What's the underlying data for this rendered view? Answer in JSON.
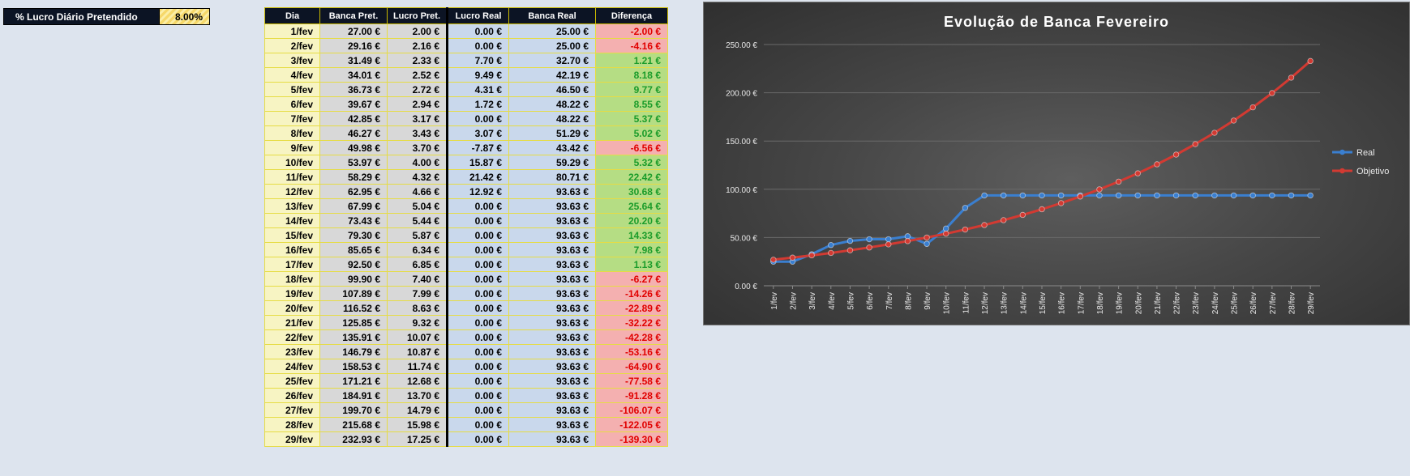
{
  "parameter": {
    "label": "% Lucro Diário Pretendido",
    "value": "8.00%"
  },
  "table": {
    "headers": [
      "Dia",
      "Banca Pret.",
      "Lucro Pret.",
      "Lucro Real",
      "Banca Real",
      "Diferença"
    ],
    "rows": [
      {
        "dia": "1/fev",
        "banca_pret": "27.00 €",
        "lucro_pret": "2.00 €",
        "lucro_real": "0.00 €",
        "banca_real": "25.00 €",
        "diferenca": "-2.00 €",
        "sign": "neg"
      },
      {
        "dia": "2/fev",
        "banca_pret": "29.16 €",
        "lucro_pret": "2.16 €",
        "lucro_real": "0.00 €",
        "banca_real": "25.00 €",
        "diferenca": "-4.16 €",
        "sign": "neg"
      },
      {
        "dia": "3/fev",
        "banca_pret": "31.49 €",
        "lucro_pret": "2.33 €",
        "lucro_real": "7.70 €",
        "banca_real": "32.70 €",
        "diferenca": "1.21 €",
        "sign": "pos"
      },
      {
        "dia": "4/fev",
        "banca_pret": "34.01 €",
        "lucro_pret": "2.52 €",
        "lucro_real": "9.49 €",
        "banca_real": "42.19 €",
        "diferenca": "8.18 €",
        "sign": "pos"
      },
      {
        "dia": "5/fev",
        "banca_pret": "36.73 €",
        "lucro_pret": "2.72 €",
        "lucro_real": "4.31 €",
        "banca_real": "46.50 €",
        "diferenca": "9.77 €",
        "sign": "pos"
      },
      {
        "dia": "6/fev",
        "banca_pret": "39.67 €",
        "lucro_pret": "2.94 €",
        "lucro_real": "1.72 €",
        "banca_real": "48.22 €",
        "diferenca": "8.55 €",
        "sign": "pos"
      },
      {
        "dia": "7/fev",
        "banca_pret": "42.85 €",
        "lucro_pret": "3.17 €",
        "lucro_real": "0.00 €",
        "banca_real": "48.22 €",
        "diferenca": "5.37 €",
        "sign": "pos"
      },
      {
        "dia": "8/fev",
        "banca_pret": "46.27 €",
        "lucro_pret": "3.43 €",
        "lucro_real": "3.07 €",
        "banca_real": "51.29 €",
        "diferenca": "5.02 €",
        "sign": "pos"
      },
      {
        "dia": "9/fev",
        "banca_pret": "49.98 €",
        "lucro_pret": "3.70 €",
        "lucro_real": "-7.87 €",
        "banca_real": "43.42 €",
        "diferenca": "-6.56 €",
        "sign": "neg"
      },
      {
        "dia": "10/fev",
        "banca_pret": "53.97 €",
        "lucro_pret": "4.00 €",
        "lucro_real": "15.87 €",
        "banca_real": "59.29 €",
        "diferenca": "5.32 €",
        "sign": "pos"
      },
      {
        "dia": "11/fev",
        "banca_pret": "58.29 €",
        "lucro_pret": "4.32 €",
        "lucro_real": "21.42 €",
        "banca_real": "80.71 €",
        "diferenca": "22.42 €",
        "sign": "pos"
      },
      {
        "dia": "12/fev",
        "banca_pret": "62.95 €",
        "lucro_pret": "4.66 €",
        "lucro_real": "12.92 €",
        "banca_real": "93.63 €",
        "diferenca": "30.68 €",
        "sign": "pos"
      },
      {
        "dia": "13/fev",
        "banca_pret": "67.99 €",
        "lucro_pret": "5.04 €",
        "lucro_real": "0.00 €",
        "banca_real": "93.63 €",
        "diferenca": "25.64 €",
        "sign": "pos"
      },
      {
        "dia": "14/fev",
        "banca_pret": "73.43 €",
        "lucro_pret": "5.44 €",
        "lucro_real": "0.00 €",
        "banca_real": "93.63 €",
        "diferenca": "20.20 €",
        "sign": "pos"
      },
      {
        "dia": "15/fev",
        "banca_pret": "79.30 €",
        "lucro_pret": "5.87 €",
        "lucro_real": "0.00 €",
        "banca_real": "93.63 €",
        "diferenca": "14.33 €",
        "sign": "pos"
      },
      {
        "dia": "16/fev",
        "banca_pret": "85.65 €",
        "lucro_pret": "6.34 €",
        "lucro_real": "0.00 €",
        "banca_real": "93.63 €",
        "diferenca": "7.98 €",
        "sign": "pos"
      },
      {
        "dia": "17/fev",
        "banca_pret": "92.50 €",
        "lucro_pret": "6.85 €",
        "lucro_real": "0.00 €",
        "banca_real": "93.63 €",
        "diferenca": "1.13 €",
        "sign": "pos"
      },
      {
        "dia": "18/fev",
        "banca_pret": "99.90 €",
        "lucro_pret": "7.40 €",
        "lucro_real": "0.00 €",
        "banca_real": "93.63 €",
        "diferenca": "-6.27 €",
        "sign": "neg"
      },
      {
        "dia": "19/fev",
        "banca_pret": "107.89 €",
        "lucro_pret": "7.99 €",
        "lucro_real": "0.00 €",
        "banca_real": "93.63 €",
        "diferenca": "-14.26 €",
        "sign": "neg"
      },
      {
        "dia": "20/fev",
        "banca_pret": "116.52 €",
        "lucro_pret": "8.63 €",
        "lucro_real": "0.00 €",
        "banca_real": "93.63 €",
        "diferenca": "-22.89 €",
        "sign": "neg"
      },
      {
        "dia": "21/fev",
        "banca_pret": "125.85 €",
        "lucro_pret": "9.32 €",
        "lucro_real": "0.00 €",
        "banca_real": "93.63 €",
        "diferenca": "-32.22 €",
        "sign": "neg"
      },
      {
        "dia": "22/fev",
        "banca_pret": "135.91 €",
        "lucro_pret": "10.07 €",
        "lucro_real": "0.00 €",
        "banca_real": "93.63 €",
        "diferenca": "-42.28 €",
        "sign": "neg"
      },
      {
        "dia": "23/fev",
        "banca_pret": "146.79 €",
        "lucro_pret": "10.87 €",
        "lucro_real": "0.00 €",
        "banca_real": "93.63 €",
        "diferenca": "-53.16 €",
        "sign": "neg"
      },
      {
        "dia": "24/fev",
        "banca_pret": "158.53 €",
        "lucro_pret": "11.74 €",
        "lucro_real": "0.00 €",
        "banca_real": "93.63 €",
        "diferenca": "-64.90 €",
        "sign": "neg"
      },
      {
        "dia": "25/fev",
        "banca_pret": "171.21 €",
        "lucro_pret": "12.68 €",
        "lucro_real": "0.00 €",
        "banca_real": "93.63 €",
        "diferenca": "-77.58 €",
        "sign": "neg"
      },
      {
        "dia": "26/fev",
        "banca_pret": "184.91 €",
        "lucro_pret": "13.70 €",
        "lucro_real": "0.00 €",
        "banca_real": "93.63 €",
        "diferenca": "-91.28 €",
        "sign": "neg"
      },
      {
        "dia": "27/fev",
        "banca_pret": "199.70 €",
        "lucro_pret": "14.79 €",
        "lucro_real": "0.00 €",
        "banca_real": "93.63 €",
        "diferenca": "-106.07 €",
        "sign": "neg"
      },
      {
        "dia": "28/fev",
        "banca_pret": "215.68 €",
        "lucro_pret": "15.98 €",
        "lucro_real": "0.00 €",
        "banca_real": "93.63 €",
        "diferenca": "-122.05 €",
        "sign": "neg"
      },
      {
        "dia": "29/fev",
        "banca_pret": "232.93 €",
        "lucro_pret": "17.25 €",
        "lucro_real": "0.00 €",
        "banca_real": "93.63 €",
        "diferenca": "-139.30 €",
        "sign": "neg"
      }
    ]
  },
  "chart_data": {
    "type": "line",
    "title": "Evolução de Banca Fevereiro",
    "categories": [
      "1/fev",
      "2/fev",
      "3/fev",
      "4/fev",
      "5/fev",
      "6/fev",
      "7/fev",
      "8/fev",
      "9/fev",
      "10/fev",
      "11/fev",
      "12/fev",
      "13/fev",
      "14/fev",
      "15/fev",
      "16/fev",
      "17/fev",
      "18/fev",
      "19/fev",
      "20/fev",
      "21/fev",
      "22/fev",
      "23/fev",
      "24/fev",
      "25/fev",
      "26/fev",
      "27/fev",
      "28/fev",
      "29/fev"
    ],
    "series": [
      {
        "name": "Real",
        "color": "#3a7fd0",
        "values": [
          25.0,
          25.0,
          32.7,
          42.19,
          46.5,
          48.22,
          48.22,
          51.29,
          43.42,
          59.29,
          80.71,
          93.63,
          93.63,
          93.63,
          93.63,
          93.63,
          93.63,
          93.63,
          93.63,
          93.63,
          93.63,
          93.63,
          93.63,
          93.63,
          93.63,
          93.63,
          93.63,
          93.63,
          93.63
        ]
      },
      {
        "name": "Objetivo",
        "color": "#d23a32",
        "values": [
          27.0,
          29.16,
          31.49,
          34.01,
          36.73,
          39.67,
          42.85,
          46.27,
          49.98,
          53.97,
          58.29,
          62.95,
          67.99,
          73.43,
          79.3,
          85.65,
          92.5,
          99.9,
          107.89,
          116.52,
          125.85,
          135.91,
          146.79,
          158.53,
          171.21,
          184.91,
          199.7,
          215.68,
          232.93
        ]
      }
    ],
    "y_ticks": [
      "0.00 €",
      "50.00 €",
      "100.00 €",
      "150.00 €",
      "200.00 €",
      "250.00 €"
    ],
    "ylim": [
      0,
      250
    ],
    "grid": true,
    "legend_position": "right"
  }
}
